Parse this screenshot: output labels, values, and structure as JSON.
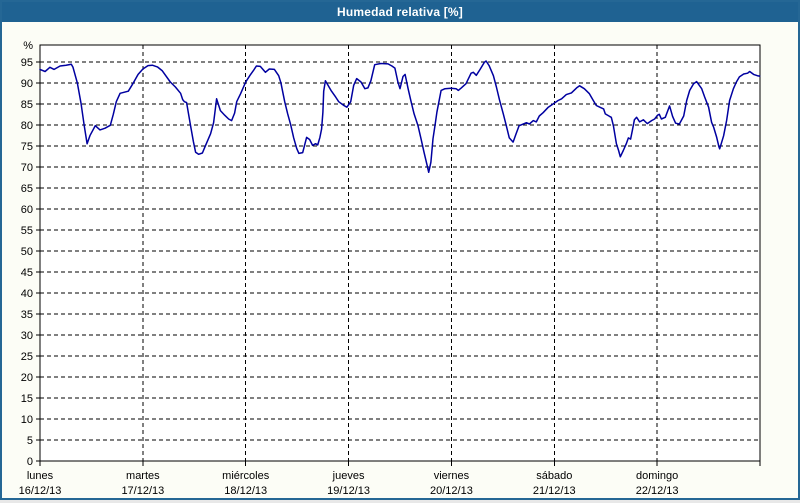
{
  "window": {
    "title": "Humedad relativa [%]"
  },
  "colors": {
    "frame": "#256795",
    "title_bar": "#1f6292",
    "title_text": "#ffffff",
    "line": "#0000a0",
    "grid": "#000000",
    "axis": "#000000",
    "plot_background": "#ffffff",
    "page_background": "#fcfdf6"
  },
  "chart_data": {
    "type": "line",
    "title": "Humedad relativa [%]",
    "ylabel": "%",
    "ylim": [
      0,
      99
    ],
    "y_ticks": [
      0,
      5,
      10,
      15,
      20,
      25,
      30,
      35,
      40,
      45,
      50,
      55,
      60,
      65,
      70,
      75,
      80,
      85,
      90,
      95
    ],
    "x_unit": "hours",
    "xlim": [
      0,
      168
    ],
    "x_day_ticks_hours": [
      0,
      24,
      48,
      72,
      96,
      120,
      144,
      168
    ],
    "grid": true,
    "grid_style": "dashed",
    "x_categories": [
      {
        "day": "lunes",
        "date": "16/12/13"
      },
      {
        "day": "martes",
        "date": "17/12/13"
      },
      {
        "day": "miércoles",
        "date": "18/12/13"
      },
      {
        "day": "jueves",
        "date": "19/12/13"
      },
      {
        "day": "viernes",
        "date": "20/12/13"
      },
      {
        "day": "sábado",
        "date": "21/12/13"
      },
      {
        "day": "domingo",
        "date": "22/12/13"
      }
    ],
    "series": [
      {
        "name": "Humedad relativa",
        "color": "#0000a0",
        "points": [
          [
            0,
            93.2
          ],
          [
            1.2,
            92.7
          ],
          [
            2.3,
            93.7
          ],
          [
            3.3,
            93.2
          ],
          [
            4.7,
            94
          ],
          [
            6.1,
            94.2
          ],
          [
            7.3,
            94.4
          ],
          [
            7.7,
            93.7
          ],
          [
            8.7,
            90
          ],
          [
            9.6,
            85
          ],
          [
            10.3,
            80
          ],
          [
            11,
            75.5
          ],
          [
            11.7,
            77.5
          ],
          [
            12.9,
            79.8
          ],
          [
            14,
            78.8
          ],
          [
            15.2,
            79.2
          ],
          [
            16.4,
            79.9
          ],
          [
            17.1,
            82.5
          ],
          [
            17.8,
            85.5
          ],
          [
            18.7,
            87.5
          ],
          [
            20.6,
            88
          ],
          [
            21.8,
            90
          ],
          [
            22.9,
            92
          ],
          [
            24,
            93.3
          ],
          [
            25.2,
            94.1
          ],
          [
            26.2,
            94.2
          ],
          [
            27.4,
            93.8
          ],
          [
            28.5,
            92.9
          ],
          [
            30.4,
            90.2
          ],
          [
            31.6,
            89
          ],
          [
            32.8,
            87.5
          ],
          [
            33.3,
            86
          ],
          [
            33.7,
            85.5
          ],
          [
            34.2,
            85.3
          ],
          [
            35.1,
            80
          ],
          [
            35.8,
            76
          ],
          [
            36.3,
            73.5
          ],
          [
            37,
            73
          ],
          [
            37.9,
            73.3
          ],
          [
            38.6,
            75
          ],
          [
            39.8,
            77.9
          ],
          [
            40.5,
            80.5
          ],
          [
            41.2,
            86.2
          ],
          [
            42.1,
            83.4
          ],
          [
            43.1,
            82.3
          ],
          [
            44,
            81.4
          ],
          [
            44.7,
            81
          ],
          [
            45.4,
            82.8
          ],
          [
            45.9,
            85.5
          ],
          [
            46.8,
            87.4
          ],
          [
            48,
            90.2
          ],
          [
            49,
            91.8
          ],
          [
            49.8,
            92.9
          ],
          [
            50.5,
            94
          ],
          [
            51.4,
            93.9
          ],
          [
            52.6,
            92.5
          ],
          [
            53.5,
            93.3
          ],
          [
            54.7,
            93.2
          ],
          [
            55.7,
            91.7
          ],
          [
            56.2,
            90
          ],
          [
            57.1,
            85.5
          ],
          [
            57.8,
            82.6
          ],
          [
            58.5,
            80
          ],
          [
            59.2,
            76.9
          ],
          [
            59.9,
            74.4
          ],
          [
            60.4,
            73.2
          ],
          [
            61.3,
            73.4
          ],
          [
            62.2,
            77
          ],
          [
            62.9,
            76.5
          ],
          [
            63.6,
            75.1
          ],
          [
            64.3,
            75.5
          ],
          [
            64.8,
            75.2
          ],
          [
            65.3,
            77
          ],
          [
            65.7,
            79
          ],
          [
            66,
            83
          ],
          [
            66.2,
            88
          ],
          [
            66.6,
            90.5
          ],
          [
            67.9,
            88.2
          ],
          [
            69,
            86.6
          ],
          [
            69.7,
            85.5
          ],
          [
            70.9,
            84.6
          ],
          [
            71.6,
            84.2
          ],
          [
            72.5,
            85.5
          ],
          [
            73.2,
            89.4
          ],
          [
            73.9,
            91
          ],
          [
            74.9,
            90.2
          ],
          [
            75.8,
            88.6
          ],
          [
            76.5,
            88.8
          ],
          [
            77.2,
            90.5
          ],
          [
            78.1,
            94.3
          ],
          [
            79.5,
            94.6
          ],
          [
            81.2,
            94.5
          ],
          [
            82.1,
            94
          ],
          [
            82.8,
            93.5
          ],
          [
            83.5,
            90.2
          ],
          [
            84,
            88.6
          ],
          [
            84.7,
            91.5
          ],
          [
            85.2,
            92
          ],
          [
            85.9,
            88.6
          ],
          [
            86.6,
            85.5
          ],
          [
            87.3,
            82.6
          ],
          [
            88.2,
            79.8
          ],
          [
            88.9,
            76.7
          ],
          [
            89.6,
            73.5
          ],
          [
            90.3,
            70.5
          ],
          [
            90.7,
            68.7
          ],
          [
            91.2,
            71.1
          ],
          [
            91.7,
            76.7
          ],
          [
            92.2,
            80
          ],
          [
            92.6,
            83
          ],
          [
            93.6,
            88.2
          ],
          [
            94.5,
            88.6
          ],
          [
            95.9,
            88.7
          ],
          [
            97.1,
            88.6
          ],
          [
            97.6,
            88.2
          ],
          [
            98.3,
            88.8
          ],
          [
            99.4,
            89.8
          ],
          [
            100.6,
            92.3
          ],
          [
            101.1,
            92.5
          ],
          [
            101.8,
            91.8
          ],
          [
            102.7,
            93.2
          ],
          [
            103.7,
            94.9
          ],
          [
            104.1,
            95.2
          ],
          [
            104.8,
            94.1
          ],
          [
            105.8,
            91.7
          ],
          [
            106.5,
            89
          ],
          [
            107.2,
            86
          ],
          [
            108.1,
            82.6
          ],
          [
            108.8,
            79.8
          ],
          [
            109.5,
            76.9
          ],
          [
            110.4,
            75.9
          ],
          [
            111.1,
            77.9
          ],
          [
            111.8,
            79.8
          ],
          [
            112.8,
            80.2
          ],
          [
            113.5,
            80.5
          ],
          [
            114.2,
            80.2
          ],
          [
            115.1,
            81
          ],
          [
            115.8,
            80.7
          ],
          [
            116.5,
            82.1
          ],
          [
            117.4,
            82.9
          ],
          [
            118.6,
            84.2
          ],
          [
            119.8,
            85
          ],
          [
            120.9,
            85.8
          ],
          [
            121.7,
            86.2
          ],
          [
            122.8,
            87.2
          ],
          [
            124,
            87.6
          ],
          [
            125.2,
            88.8
          ],
          [
            125.9,
            89.3
          ],
          [
            127,
            88.6
          ],
          [
            128.2,
            87.4
          ],
          [
            129.1,
            85.8
          ],
          [
            129.8,
            84.6
          ],
          [
            130.8,
            84.1
          ],
          [
            131.5,
            83.8
          ],
          [
            131.9,
            82.6
          ],
          [
            132.9,
            82
          ],
          [
            133.3,
            81.8
          ],
          [
            133.8,
            79.8
          ],
          [
            134.5,
            75.5
          ],
          [
            135,
            73.9
          ],
          [
            135.4,
            72.4
          ],
          [
            136.1,
            73.9
          ],
          [
            136.8,
            75.5
          ],
          [
            137.3,
            76.9
          ],
          [
            137.8,
            76.6
          ],
          [
            138.2,
            78.6
          ],
          [
            138.7,
            81.2
          ],
          [
            139.2,
            81.8
          ],
          [
            139.9,
            80.7
          ],
          [
            140.8,
            81.2
          ],
          [
            141.7,
            80.3
          ],
          [
            142.7,
            81
          ],
          [
            143.4,
            81.4
          ],
          [
            144.1,
            82.3
          ],
          [
            144.5,
            82.5
          ],
          [
            145,
            81.4
          ],
          [
            145.9,
            81.8
          ],
          [
            146.9,
            84.5
          ],
          [
            147.6,
            82
          ],
          [
            148.3,
            80.4
          ],
          [
            149.2,
            80.2
          ],
          [
            150.2,
            82.1
          ],
          [
            150.9,
            85.8
          ],
          [
            151.6,
            88.2
          ],
          [
            152.5,
            89.8
          ],
          [
            153.2,
            90.3
          ],
          [
            154.4,
            88.6
          ],
          [
            155.1,
            86.6
          ],
          [
            156,
            84.2
          ],
          [
            156.7,
            80.6
          ],
          [
            157.2,
            79.4
          ],
          [
            157.9,
            77
          ],
          [
            158.4,
            74.8
          ],
          [
            158.6,
            74.3
          ],
          [
            159.5,
            77.4
          ],
          [
            160.2,
            81
          ],
          [
            160.9,
            85.8
          ],
          [
            161.8,
            88.6
          ],
          [
            162.5,
            90.2
          ],
          [
            163.2,
            91.4
          ],
          [
            164.2,
            92.1
          ],
          [
            165.1,
            92.3
          ],
          [
            165.6,
            92.7
          ],
          [
            166.5,
            92
          ],
          [
            167.4,
            91.7
          ],
          [
            167.9,
            91.6
          ]
        ]
      }
    ]
  }
}
